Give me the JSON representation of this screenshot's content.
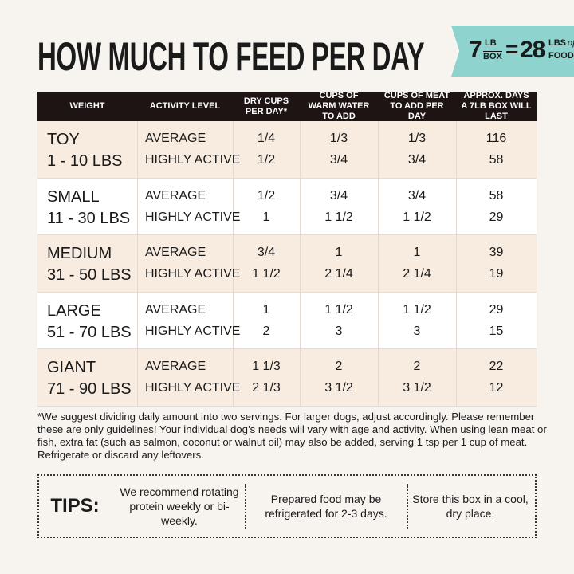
{
  "title": "HOW MUCH TO FEED PER DAY",
  "badge": {
    "box_weight": "7",
    "box_unit_top": "LB",
    "box_unit_bottom": "BOX",
    "equals": "=",
    "food_weight": "28",
    "food_unit_top": "LBS",
    "food_unit_of": "of",
    "food_unit_bottom": "FOOD!"
  },
  "table": {
    "headers": [
      "WEIGHT",
      "ACTIVITY LEVEL",
      "DRY CUPS PER DAY*",
      "CUPS OF WARM WATER TO ADD",
      "CUPS OF MEAT TO ADD PER DAY",
      "APPROX. DAYS A 7LB BOX WILL LAST"
    ],
    "rows": [
      {
        "size": "TOY",
        "range": "1 - 10 LBS",
        "levels": [
          {
            "activity": "AVERAGE",
            "dry": "1/4",
            "water": "1/3",
            "meat": "1/3",
            "days": 116
          },
          {
            "activity": "HIGHLY ACTIVE",
            "dry": "1/2",
            "water": "3/4",
            "meat": "3/4",
            "days": 58
          }
        ]
      },
      {
        "size": "SMALL",
        "range": "11 - 30 LBS",
        "levels": [
          {
            "activity": "AVERAGE",
            "dry": "1/2",
            "water": "3/4",
            "meat": "3/4",
            "days": 58
          },
          {
            "activity": "HIGHLY ACTIVE",
            "dry": "1",
            "water": "1 1/2",
            "meat": "1 1/2",
            "days": 29
          }
        ]
      },
      {
        "size": "MEDIUM",
        "range": "31 - 50 LBS",
        "levels": [
          {
            "activity": "AVERAGE",
            "dry": "3/4",
            "water": "1",
            "meat": "1",
            "days": 39
          },
          {
            "activity": "HIGHLY ACTIVE",
            "dry": "1 1/2",
            "water": "2 1/4",
            "meat": "2 1/4",
            "days": 19
          }
        ]
      },
      {
        "size": "LARGE",
        "range": "51 - 70 LBS",
        "levels": [
          {
            "activity": "AVERAGE",
            "dry": "1",
            "water": "1 1/2",
            "meat": "1 1/2",
            "days": 29
          },
          {
            "activity": "HIGHLY ACTIVE",
            "dry": "2",
            "water": "3",
            "meat": "3",
            "days": 15
          }
        ]
      },
      {
        "size": "GIANT",
        "range": "71 - 90 LBS",
        "levels": [
          {
            "activity": "AVERAGE",
            "dry": "1 1/3",
            "water": "2",
            "meat": "2",
            "days": 22
          },
          {
            "activity": "HIGHLY ACTIVE",
            "dry": "2 1/3",
            "water": "3 1/2",
            "meat": "3 1/2",
            "days": 12
          }
        ]
      }
    ]
  },
  "footnote": "*We suggest dividing daily amount into two servings. For larger dogs, adjust accordingly. Please remember these are only guidelines! Your individual dog’s needs will vary with age and activity. When using lean meat or fish, extra fat (such as salmon, coconut or walnut oil) may also be added, serving 1 tsp per 1 cup of meat. Refrigerate or discard any leftovers.",
  "tips": {
    "label": "TIPS:",
    "items": [
      "We recommend rotating protein weekly or bi-weekly.",
      "Prepared food may be refrigerated for 2-3 days.",
      "Store this box in a cool, dry place."
    ]
  }
}
